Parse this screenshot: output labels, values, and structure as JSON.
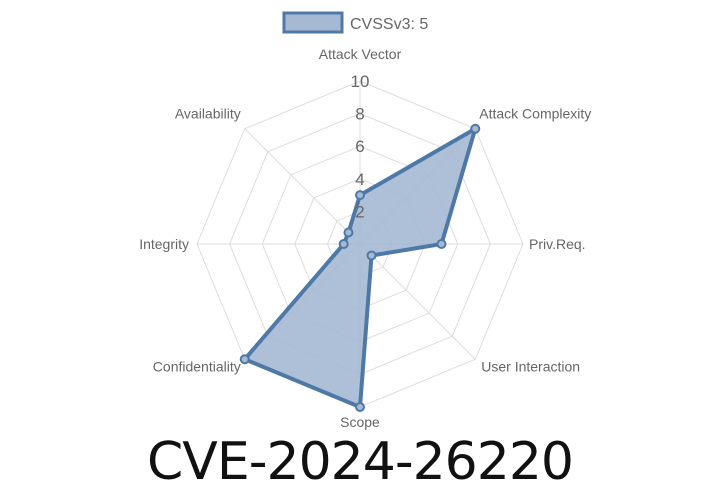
{
  "title": "CVE-2024-26220",
  "chart_data": {
    "type": "radar",
    "categories": [
      "Attack Vector",
      "Attack Complexity",
      "Priv.Req.",
      "User Interaction",
      "Scope",
      "Confidentiality",
      "Integrity",
      "Availability"
    ],
    "series": [
      {
        "name": "CVSSv3: 5",
        "values": [
          3,
          10,
          5,
          1,
          10,
          10,
          1,
          1
        ]
      }
    ],
    "rlim": [
      0,
      10
    ],
    "ticks": [
      "2",
      "4",
      "6",
      "8",
      "10"
    ],
    "legend_position": "top",
    "colors": {
      "line": "#4e79a7",
      "fill": "#a5b9d3",
      "grid": "#dddddd"
    }
  }
}
